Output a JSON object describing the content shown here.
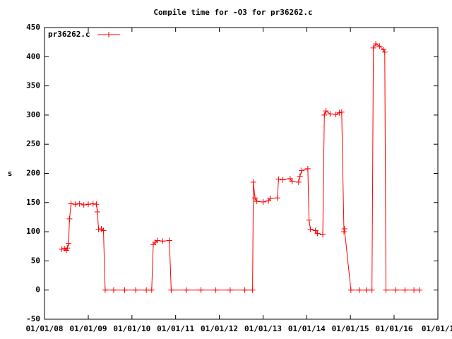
{
  "chart_data": {
    "type": "line",
    "title": "Compile time for -O3 for pr36262.c",
    "ylabel": "s",
    "x": [
      "2008-05-25",
      "2008-06-15",
      "2008-07-01",
      "2008-07-10",
      "2008-07-20",
      "2008-07-28",
      "2008-08-10",
      "2008-09-15",
      "2008-10-20",
      "2008-11-25",
      "2009-01-01",
      "2009-02-10",
      "2009-03-10",
      "2009-03-18",
      "2009-03-28",
      "2009-04-20",
      "2009-05-08",
      "2009-05-22",
      "2009-08-01",
      "2009-11-01",
      "2010-02-01",
      "2010-05-01",
      "2010-06-15",
      "2010-06-28",
      "2010-07-15",
      "2010-08-01",
      "2010-09-15",
      "2010-11-10",
      "2010-11-25",
      "2011-04-01",
      "2011-08-01",
      "2011-12-01",
      "2012-04-01",
      "2012-08-01",
      "2012-10-05",
      "2012-10-12",
      "2012-10-25",
      "2012-11-10",
      "2013-01-01",
      "2013-02-15",
      "2013-03-01",
      "2013-05-01",
      "2013-05-10",
      "2013-06-15",
      "2013-08-15",
      "2013-09-01",
      "2013-10-25",
      "2013-11-05",
      "2013-11-20",
      "2014-01-10",
      "2014-01-20",
      "2014-02-01",
      "2014-03-15",
      "2014-04-01",
      "2014-05-15",
      "2014-05-28",
      "2014-06-10",
      "2014-07-15",
      "2014-09-01",
      "2014-10-01",
      "2014-10-20",
      "2014-11-08",
      "2014-11-12",
      "2015-01-05",
      "2015-03-15",
      "2015-05-15",
      "2015-06-30",
      "2015-07-12",
      "2015-08-01",
      "2015-09-01",
      "2015-10-05",
      "2015-10-15",
      "2015-10-25",
      "2016-01-15",
      "2016-04-01",
      "2016-06-15",
      "2016-08-01"
    ],
    "series": [
      {
        "name": "pr36262.c",
        "color": "#ff0000",
        "values": [
          70,
          71,
          68,
          72,
          80,
          122,
          148,
          147,
          148,
          146,
          147,
          148,
          147,
          134,
          104,
          105,
          102,
          0,
          0,
          0,
          0,
          0,
          0,
          78,
          82,
          85,
          84,
          85,
          0,
          0,
          0,
          0,
          0,
          0,
          0,
          185,
          158,
          152,
          151,
          153,
          157,
          158,
          190,
          189,
          191,
          186,
          185,
          195,
          205,
          208,
          120,
          104,
          102,
          97,
          95,
          300,
          307,
          302,
          301,
          304,
          305,
          100,
          105,
          0,
          0,
          0,
          0,
          415,
          422,
          418,
          412,
          408,
          0,
          0,
          0,
          0,
          0
        ]
      }
    ],
    "xlim": [
      "2008-01-01",
      "2017-01-01"
    ],
    "xticks": [
      {
        "value": "2008-01-01",
        "label": "01/01/08"
      },
      {
        "value": "2009-01-01",
        "label": "01/01/09"
      },
      {
        "value": "2010-01-01",
        "label": "01/01/10"
      },
      {
        "value": "2011-01-01",
        "label": "01/01/11"
      },
      {
        "value": "2012-01-01",
        "label": "01/01/12"
      },
      {
        "value": "2013-01-01",
        "label": "01/01/13"
      },
      {
        "value": "2014-01-01",
        "label": "01/01/14"
      },
      {
        "value": "2015-01-01",
        "label": "01/01/15"
      },
      {
        "value": "2016-01-01",
        "label": "01/01/16"
      },
      {
        "value": "2017-01-01",
        "label": "01/01/1"
      }
    ],
    "ylim": [
      -50,
      450
    ],
    "yticks": [
      -50,
      0,
      50,
      100,
      150,
      200,
      250,
      300,
      350,
      400,
      450
    ],
    "legend": "top-left"
  }
}
